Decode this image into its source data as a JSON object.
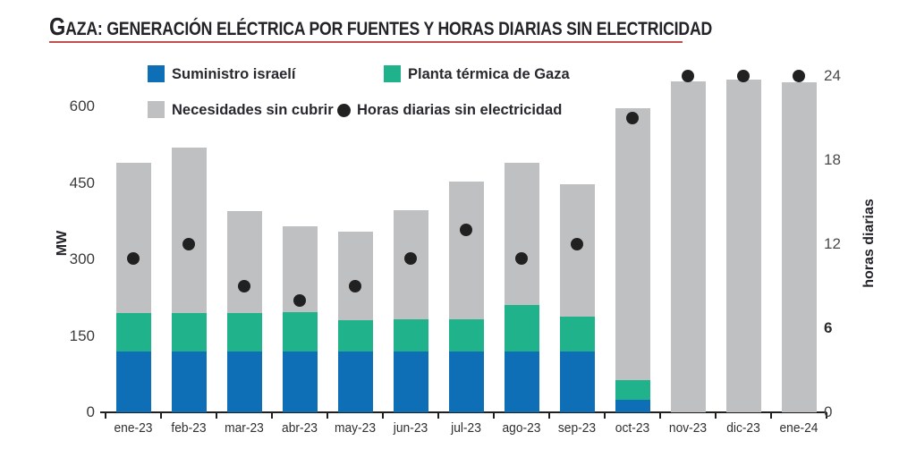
{
  "title": {
    "lead": "G",
    "rest": "AZA: GENERACIÓN ELÉCTRICA POR FUENTES Y HORAS DIARIAS SIN ELECTRICIDAD"
  },
  "legend": {
    "israeli": "Suministro israelí",
    "gpp": "Planta térmica de Gaza",
    "unmet": "Necesidades sin cubrir",
    "hours": "Horas diarias sin electricidad"
  },
  "axes": {
    "left_label": "MW",
    "right_label": "horas diarias",
    "left_ticks": [
      {
        "label": "0",
        "value": 0
      },
      {
        "label": "150",
        "value": 150
      },
      {
        "label": "300",
        "value": 300
      },
      {
        "label": "450",
        "value": 450
      },
      {
        "label": "600",
        "value": 600
      }
    ],
    "right_ticks": [
      {
        "label": "0",
        "value": 0,
        "bold": false
      },
      {
        "label": "6",
        "value": 6,
        "bold": true
      },
      {
        "label": "12",
        "value": 12,
        "bold": false
      },
      {
        "label": "18",
        "value": 18,
        "bold": false
      },
      {
        "label": "24",
        "value": 24,
        "bold": false
      }
    ]
  },
  "colors": {
    "israeli_blue": "#0e6fb6",
    "gpp_green": "#1fb28b",
    "unmet_gray": "#bfc0c2",
    "dot_black": "#212121",
    "title_rule_red": "#c0504d",
    "axis_line": "#1f1f1f"
  },
  "chart_data": {
    "type": "bar",
    "stacked": true,
    "grid": false,
    "legend_position": "top",
    "title": "GAZA: GENERACIÓN ELÉCTRICA POR FUENTES Y HORAS DIARIAS SIN ELECTRICIDAD",
    "xlabel": "",
    "ylabel_left": "MW",
    "ylabel_right": "horas diarias",
    "ylim_left": [
      0,
      600
    ],
    "ylim_right": [
      0,
      24
    ],
    "categories": [
      "ene-23",
      "feb-23",
      "mar-23",
      "abr-23",
      "may-23",
      "jun-23",
      "jul-23",
      "ago-23",
      "sep-23",
      "oct-23",
      "nov-23",
      "dic-23",
      "ene-24"
    ],
    "series": [
      {
        "name": "Suministro israelí",
        "unit": "MW",
        "color": "#0e6fb6",
        "values": [
          120,
          120,
          120,
          120,
          120,
          120,
          120,
          120,
          120,
          25,
          0,
          0,
          0
        ]
      },
      {
        "name": "Planta térmica de Gaza",
        "unit": "MW",
        "color": "#1fb28b",
        "values": [
          75,
          75,
          75,
          76,
          60,
          62,
          63,
          90,
          68,
          38,
          0,
          0,
          0
        ]
      },
      {
        "name": "Necesidades sin cubrir",
        "unit": "MW",
        "color": "#bfc0c2",
        "values": [
          295,
          325,
          200,
          169,
          175,
          215,
          270,
          280,
          260,
          533,
          650,
          652,
          647
        ]
      }
    ],
    "dot_series": {
      "name": "Horas diarias sin electricidad",
      "unit": "horas",
      "axis": "right",
      "color": "#212121",
      "values": [
        11,
        12,
        9,
        8,
        9,
        11,
        13,
        11,
        12,
        21,
        24,
        24,
        24
      ]
    }
  }
}
